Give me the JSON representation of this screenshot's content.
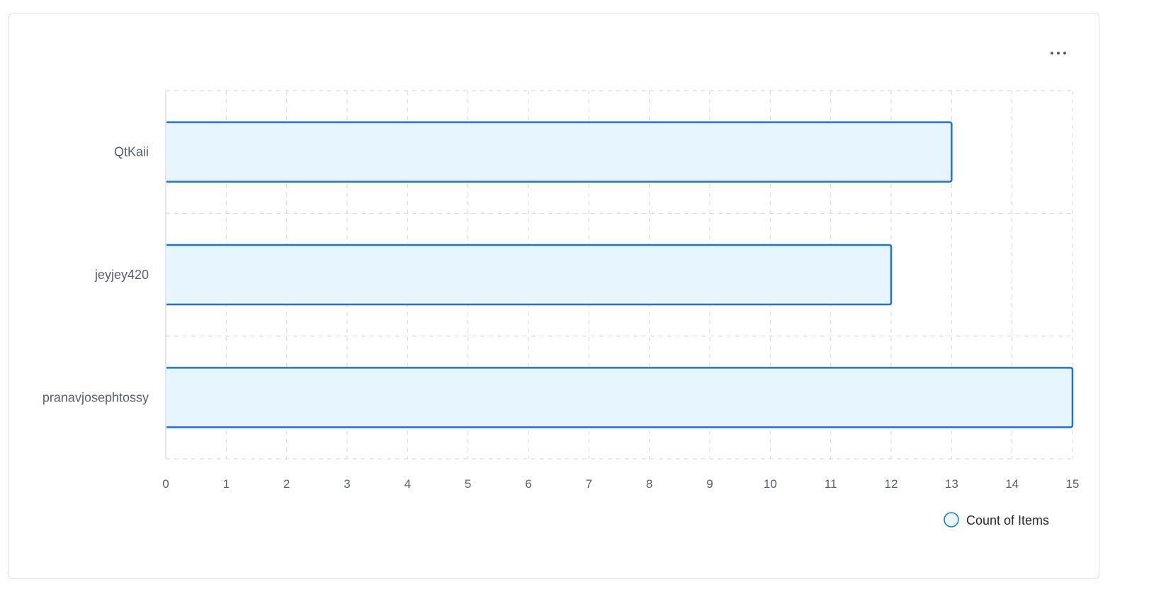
{
  "menu": {
    "icon": "kebab-horizontal-icon"
  },
  "chart_data": {
    "type": "bar",
    "orientation": "horizontal",
    "categories": [
      "QtKaii",
      "jeyjey420",
      "pranavjosephtossy"
    ],
    "series": [
      {
        "name": "Count of Items",
        "values": [
          13,
          12,
          15
        ]
      }
    ],
    "xlim": [
      0,
      15
    ],
    "xticks": [
      "0",
      "1",
      "2",
      "3",
      "4",
      "5",
      "6",
      "7",
      "8",
      "9",
      "10",
      "11",
      "12",
      "13",
      "14",
      "15"
    ],
    "grid": true,
    "legend": "bottom-right",
    "colors": {
      "bar_fill": "#e7f5fe",
      "bar_stroke": "#1a73e0",
      "grid": "#dadde1",
      "axis": "#d0d7de"
    }
  }
}
